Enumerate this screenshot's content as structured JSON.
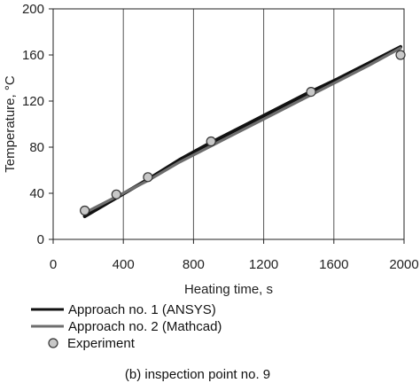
{
  "chart_data": {
    "type": "line",
    "title": "",
    "caption": "(b) inspection point no. 9",
    "xlabel": "Heating time, s",
    "ylabel": "Temperature, °C",
    "xlim": [
      0,
      2000
    ],
    "ylim": [
      0,
      200
    ],
    "xticks": [
      0,
      400,
      800,
      1200,
      1600,
      2000
    ],
    "yticks": [
      0,
      40,
      80,
      120,
      160,
      200
    ],
    "grid": "vertical",
    "legend_position": "bottom",
    "series": [
      {
        "name": "Approach no. 1 (ANSYS)",
        "kind": "line",
        "color": "#111111",
        "x": [
          180,
          360,
          540,
          720,
          900,
          1080,
          1260,
          1440,
          1620,
          1800,
          1980
        ],
        "y": [
          20,
          36,
          52,
          69,
          84,
          98,
          112,
          126,
          139,
          153,
          167
        ]
      },
      {
        "name": "Approach no. 2 (Mathcad)",
        "kind": "line",
        "color": "#6e6e6e",
        "x": [
          180,
          360,
          540,
          720,
          900,
          1080,
          1260,
          1440,
          1620,
          1800,
          1980
        ],
        "y": [
          23,
          37,
          51,
          67,
          81,
          95,
          109,
          123,
          137,
          151,
          166
        ]
      },
      {
        "name": "Experiment",
        "kind": "marker",
        "color": "#c8c8c8",
        "x": [
          180,
          360,
          540,
          900,
          1470,
          1980
        ],
        "y": [
          25,
          39,
          54,
          85,
          128,
          160
        ]
      }
    ]
  }
}
